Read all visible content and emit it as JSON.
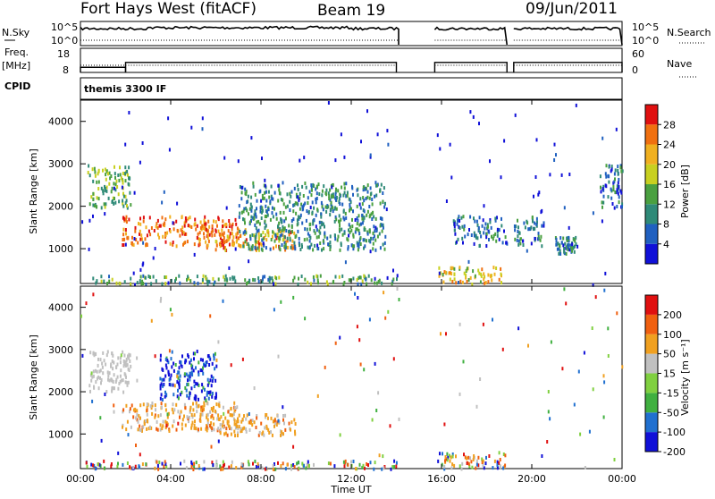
{
  "header": {
    "station": "Fort Hays West (fitACF)",
    "beam": "Beam 19",
    "date": "09/Jun/2011"
  },
  "cpid_text": "themis 3300 IF",
  "chart_data": [
    {
      "type": "line",
      "panel": "noise",
      "left_label": "N.Sky",
      "right_label": "N.Search",
      "left_ticks": [
        "10^5",
        "10^0"
      ],
      "right_ticks": [
        "10^5",
        "10^0"
      ],
      "data_gaps_utc_hours": [
        [
          14.1,
          15.7
        ],
        [
          18.9,
          19.2
        ]
      ]
    },
    {
      "type": "line",
      "panel": "frequency",
      "left_label": "Freq. [MHz]",
      "right_label": "Nave",
      "left_ticks": [
        18,
        8
      ],
      "right_ticks": [
        60,
        0
      ],
      "freq_steps": [
        [
          0,
          2.0,
          10.5
        ],
        [
          2.0,
          14.0,
          12.5
        ],
        [
          15.7,
          18.9,
          12.5
        ],
        [
          19.2,
          24,
          12.5
        ]
      ],
      "nave_level": 0.35
    },
    {
      "type": "heatmap",
      "panel": "power",
      "ylabel": "Slant Range [km]",
      "xlabel": "",
      "x_range_hours": [
        0,
        24
      ],
      "y_range_km": [
        180,
        4500
      ],
      "y_ticks": [
        1000,
        2000,
        3000,
        4000
      ],
      "colorbar": {
        "label": "Power [dB]",
        "ticks": [
          4,
          8,
          12,
          16,
          20,
          24,
          28
        ],
        "range": [
          0,
          32
        ],
        "colors": [
          "#1010d8",
          "#2060c0",
          "#2f8a78",
          "#4aa040",
          "#c8d020",
          "#f0b020",
          "#f07010",
          "#e01010"
        ]
      },
      "scatter_regions": [
        {
          "t": [
            0.3,
            2.2
          ],
          "r": [
            2000,
            3000
          ],
          "level": 12
        },
        {
          "t": [
            1.8,
            7.0
          ],
          "r": [
            1100,
            1800
          ],
          "level": 24
        },
        {
          "t": [
            5.5,
            9.5
          ],
          "r": [
            1000,
            1500
          ],
          "level": 22
        },
        {
          "t": [
            7.0,
            13.5
          ],
          "r": [
            1000,
            2600
          ],
          "level": 8
        },
        {
          "t": [
            0.2,
            14.0
          ],
          "r": [
            200,
            400
          ],
          "level": 10
        },
        {
          "t": [
            15.8,
            18.8
          ],
          "r": [
            200,
            600
          ],
          "level": 18
        },
        {
          "t": [
            16.5,
            20.5
          ],
          "r": [
            1100,
            1800
          ],
          "level": 6
        },
        {
          "t": [
            21.0,
            22.0
          ],
          "r": [
            900,
            1300
          ],
          "level": 7
        },
        {
          "t": [
            23.0,
            24.0
          ],
          "r": [
            2000,
            3000
          ],
          "level": 6
        }
      ]
    },
    {
      "type": "heatmap",
      "panel": "velocity",
      "ylabel": "Slant Range [km]",
      "xlabel": "Time UT",
      "x_ticks": [
        "00:00",
        "04:00",
        "08:00",
        "12:00",
        "16:00",
        "20:00",
        "00:00"
      ],
      "x_range_hours": [
        0,
        24
      ],
      "y_range_km": [
        180,
        4500
      ],
      "y_ticks": [
        1000,
        2000,
        3000,
        4000
      ],
      "colorbar": {
        "label": "Velocity [m s⁻¹]",
        "ticks": [
          200,
          100,
          50,
          15,
          -15,
          -50,
          -100,
          -200
        ],
        "colors": [
          "#1010d8",
          "#2070d0",
          "#40b040",
          "#80d040",
          "#c0c0c0",
          "#f0a020",
          "#f06010",
          "#e01010"
        ]
      },
      "scatter_regions": [
        {
          "t": [
            0.3,
            2.2
          ],
          "r": [
            2000,
            3000
          ],
          "level": "ground"
        },
        {
          "t": [
            1.8,
            7.0
          ],
          "r": [
            1100,
            1800
          ],
          "level": "away"
        },
        {
          "t": [
            5.5,
            9.5
          ],
          "r": [
            1000,
            1500
          ],
          "level": "away"
        },
        {
          "t": [
            3.5,
            6.0
          ],
          "r": [
            1800,
            3000
          ],
          "level": "toward"
        },
        {
          "t": [
            0.2,
            14.0
          ],
          "r": [
            200,
            400
          ],
          "level": "mixed"
        },
        {
          "t": [
            15.8,
            18.8
          ],
          "r": [
            200,
            600
          ],
          "level": "mixed"
        }
      ]
    }
  ]
}
